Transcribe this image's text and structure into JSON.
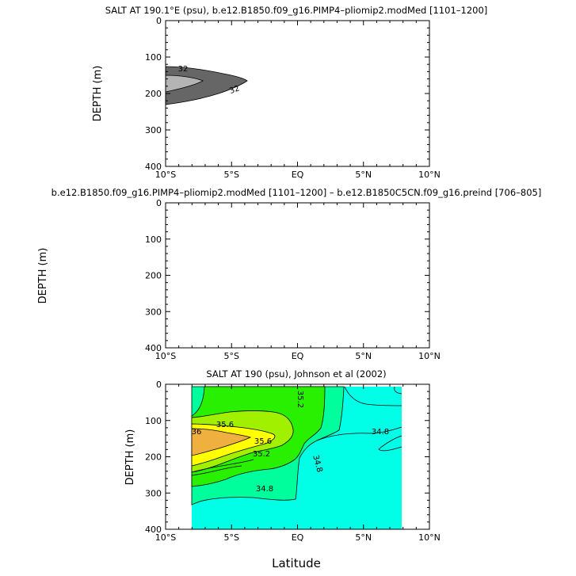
{
  "chart_data": [
    {
      "type": "contour",
      "title": "SALT AT 190.1°E (psu), b.e12.B1850.f09_g16.PIMP4–pliomip2.modMed [1101–1200]",
      "xlabel": "",
      "ylabel": "DEPTH (m)",
      "xlim": [
        -10,
        10
      ],
      "ylim": [
        400,
        0
      ],
      "x_ticks": [
        "10°S",
        "5°S",
        "EQ",
        "5°N",
        "10°N"
      ],
      "y_ticks": [
        "0",
        "100",
        "200",
        "300",
        "400"
      ],
      "contour_labels": [
        "32",
        "32"
      ],
      "fill_colors": [
        "#666666",
        "#b4b4b4"
      ]
    },
    {
      "type": "contour",
      "title": "b.e12.B1850.f09_g16.PIMP4–pliomip2.modMed [1101–1200] – b.e12.B1850C5CN.f09_g16.preind [706–805]",
      "xlabel": "",
      "ylabel": "DEPTH  (m)",
      "xlim": [
        -10,
        10
      ],
      "ylim": [
        400,
        0
      ],
      "x_ticks": [
        "10°S",
        "5°S",
        "EQ",
        "5°N",
        "10°N"
      ],
      "y_ticks": [
        "0",
        "100",
        "200",
        "300",
        "400"
      ]
    },
    {
      "type": "contour",
      "title": "SALT AT 190 (psu), Johnson et al (2002)",
      "xlabel": "Latitude",
      "ylabel": "DEPTH (m)",
      "xlim": [
        -10,
        10
      ],
      "ylim": [
        400,
        0
      ],
      "x_ticks": [
        "10°S",
        "5°S",
        "EQ",
        "5°N",
        "10°N"
      ],
      "y_ticks": [
        "0",
        "100",
        "200",
        "300",
        "400"
      ],
      "contour_labels": [
        "35.2",
        "35.6",
        "36",
        "35.6",
        "35.2",
        "34.8",
        "34.8",
        "34.8"
      ],
      "fill_colors": [
        "#00ffe6",
        "#00ff9c",
        "#28f000",
        "#a0f000",
        "#ffff00",
        "#f0b040"
      ]
    }
  ]
}
